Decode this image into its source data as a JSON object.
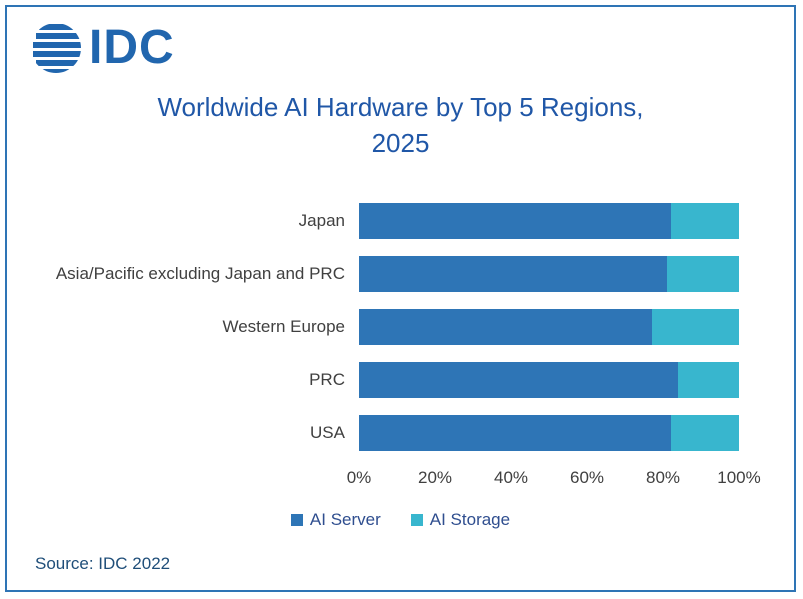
{
  "logo": {
    "text": "IDC"
  },
  "title": {
    "line1": "Worldwide AI Hardware by Top 5 Regions,",
    "line2": "2025"
  },
  "source": "Source: IDC 2022",
  "colors": {
    "server": "#2e75b6",
    "storage": "#38b6ce",
    "title_text": "#2057a7",
    "border": "#2e74b5"
  },
  "chart_data": {
    "type": "bar",
    "orientation": "horizontal",
    "stacked": true,
    "title": "Worldwide AI Hardware by Top 5 Regions, 2025",
    "categories": [
      "Japan",
      "Asia/Pacific excluding Japan and PRC",
      "Western Europe",
      "PRC",
      "USA"
    ],
    "series": [
      {
        "name": "AI Server",
        "color": "#2e75b6",
        "values": [
          82,
          81,
          77,
          84,
          82
        ]
      },
      {
        "name": "AI Storage",
        "color": "#38b6ce",
        "values": [
          18,
          19,
          23,
          16,
          18
        ]
      }
    ],
    "x_ticks": [
      "0%",
      "20%",
      "40%",
      "60%",
      "80%",
      "100%"
    ],
    "xlim": [
      0,
      100
    ],
    "xlabel": "",
    "ylabel": "",
    "grid": false,
    "legend_position": "bottom"
  }
}
